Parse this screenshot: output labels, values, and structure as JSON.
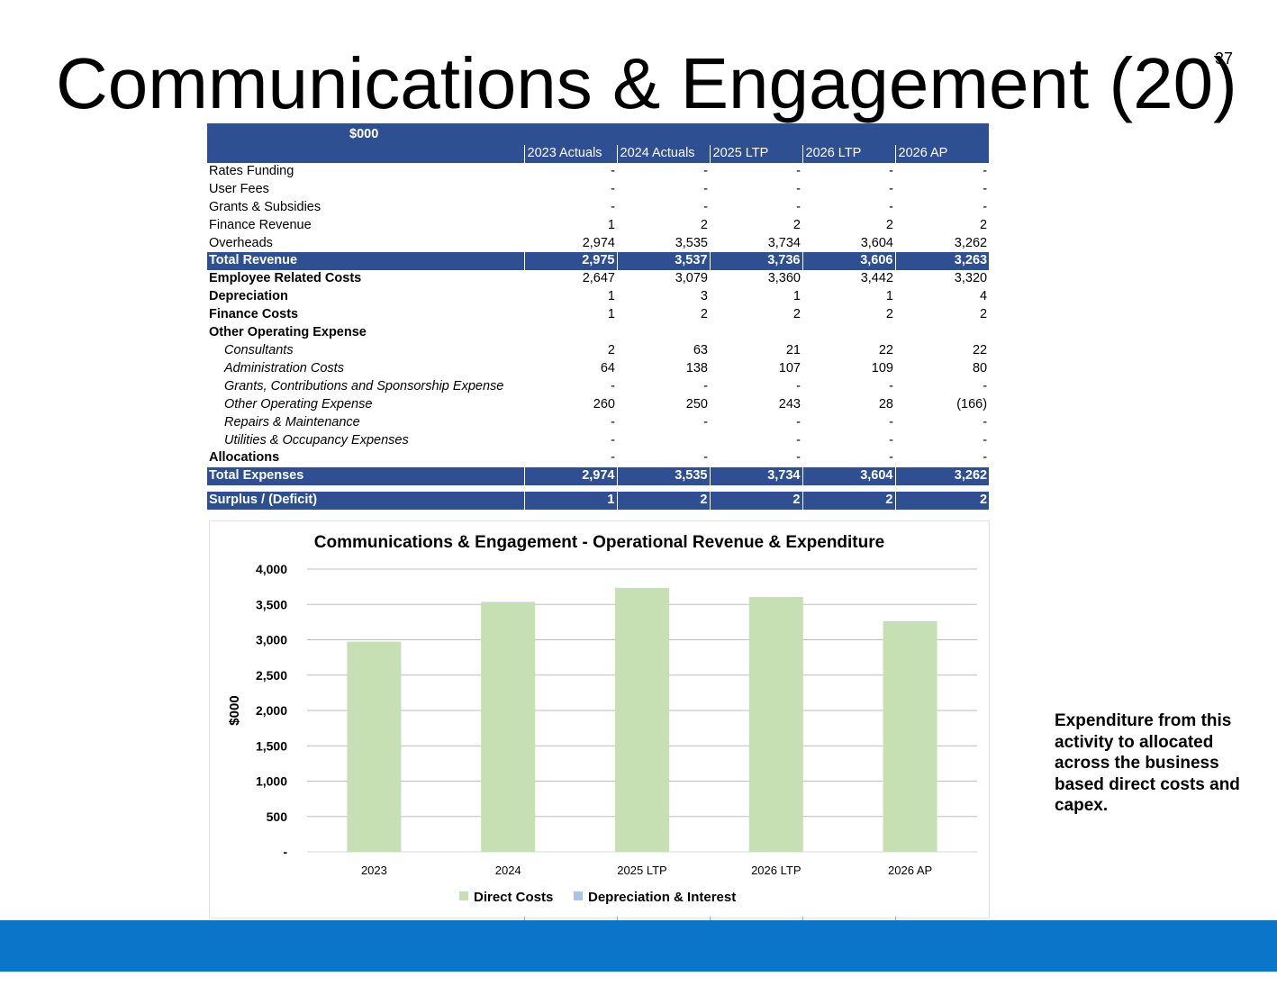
{
  "slide": {
    "title": "Communications & Engagement (20)",
    "page_number": "37",
    "note": "Expenditure from this activity to allocated across the business based direct costs and capex.",
    "colors": {
      "header_band": "#2e4f91",
      "footer_bar": "#0b75c9",
      "direct_costs": "#c6e0b4",
      "depreciation_interest": "#a9c4e6"
    }
  },
  "table": {
    "unit_label": "$000",
    "columns": [
      "2023 Actuals",
      "2024 Actuals",
      "2025 LTP",
      "2026 LTP",
      "2026 AP"
    ],
    "rows": [
      {
        "label": "Rates Funding",
        "style": "plain",
        "values": [
          "-",
          "-",
          "-",
          "-",
          "-"
        ]
      },
      {
        "label": "User Fees",
        "style": "plain",
        "values": [
          "-",
          "-",
          "-",
          "-",
          "-"
        ]
      },
      {
        "label": "Grants & Subsidies",
        "style": "plain",
        "values": [
          "-",
          "-",
          "-",
          "-",
          "-"
        ]
      },
      {
        "label": "Finance Revenue",
        "style": "plain",
        "values": [
          "1",
          "2",
          "2",
          "2",
          "2"
        ]
      },
      {
        "label": "Overheads",
        "style": "plain",
        "values": [
          "2,974",
          "3,535",
          "3,734",
          "3,604",
          "3,262"
        ]
      },
      {
        "label": "Total Revenue",
        "style": "band",
        "values": [
          "2,975",
          "3,537",
          "3,736",
          "3,606",
          "3,263"
        ]
      },
      {
        "label": "Employee Related Costs",
        "style": "bold",
        "values": [
          "2,647",
          "3,079",
          "3,360",
          "3,442",
          "3,320"
        ]
      },
      {
        "label": "Depreciation",
        "style": "bold",
        "values": [
          "1",
          "3",
          "1",
          "1",
          "4"
        ]
      },
      {
        "label": "Finance Costs",
        "style": "bold",
        "values": [
          "1",
          "2",
          "2",
          "2",
          "2"
        ]
      },
      {
        "label": "Other Operating  Expense",
        "style": "bold",
        "values": [
          "",
          "",
          "",
          "",
          ""
        ]
      },
      {
        "label": "Consultants",
        "style": "sub",
        "values": [
          "2",
          "63",
          "21",
          "22",
          "22"
        ]
      },
      {
        "label": "Administration Costs",
        "style": "sub",
        "values": [
          "64",
          "138",
          "107",
          "109",
          "80"
        ]
      },
      {
        "label": "Grants, Contributions and Sponsorship Expense",
        "style": "sub",
        "values": [
          "-",
          "-",
          "-",
          "-",
          "-"
        ]
      },
      {
        "label": "Other Operating Expense",
        "style": "sub",
        "values": [
          "260",
          "250",
          "243",
          "28",
          "(166)"
        ]
      },
      {
        "label": "Repairs & Maintenance",
        "style": "sub",
        "values": [
          "-",
          "-",
          "-",
          "-",
          "-"
        ]
      },
      {
        "label": "Utilities & Occupancy Expenses",
        "style": "sub",
        "values": [
          "-",
          "",
          "-",
          "-",
          "-"
        ]
      },
      {
        "label": "Allocations",
        "style": "bold",
        "values": [
          "-",
          "-",
          "-",
          "-",
          "-"
        ]
      },
      {
        "label": "Total Expenses",
        "style": "band",
        "values": [
          "2,974",
          "3,535",
          "3,734",
          "3,604",
          "3,262"
        ]
      },
      {
        "label": "",
        "style": "gap",
        "values": [
          "",
          "",
          "",
          "",
          ""
        ]
      },
      {
        "label": "Surplus / (Deficit)",
        "style": "band",
        "values": [
          "1",
          "2",
          "2",
          "2",
          "2"
        ]
      }
    ]
  },
  "chart_data": {
    "type": "bar",
    "stacked": true,
    "title": "Communications & Engagement - Operational Revenue & Expenditure",
    "ylabel": "$000",
    "xlabel": "",
    "categories": [
      "2023",
      "2024",
      "2025 LTP",
      "2026 LTP",
      "2026 AP"
    ],
    "series": [
      {
        "name": "Direct Costs",
        "color": "#c6e0b4",
        "values": [
          2972,
          3530,
          3731,
          3601,
          3256
        ]
      },
      {
        "name": "Depreciation & Interest",
        "color": "#a9c4e6",
        "values": [
          2,
          5,
          3,
          3,
          6
        ]
      }
    ],
    "ylim": [
      0,
      4000
    ],
    "yticks": [
      0,
      500,
      1000,
      1500,
      2000,
      2500,
      3000,
      3500,
      4000
    ],
    "ytick_labels": [
      "-",
      "500",
      "1,000",
      "1,500",
      "2,000",
      "2,500",
      "3,000",
      "3,500",
      "4,000"
    ],
    "grid": true,
    "legend": "bottom"
  }
}
